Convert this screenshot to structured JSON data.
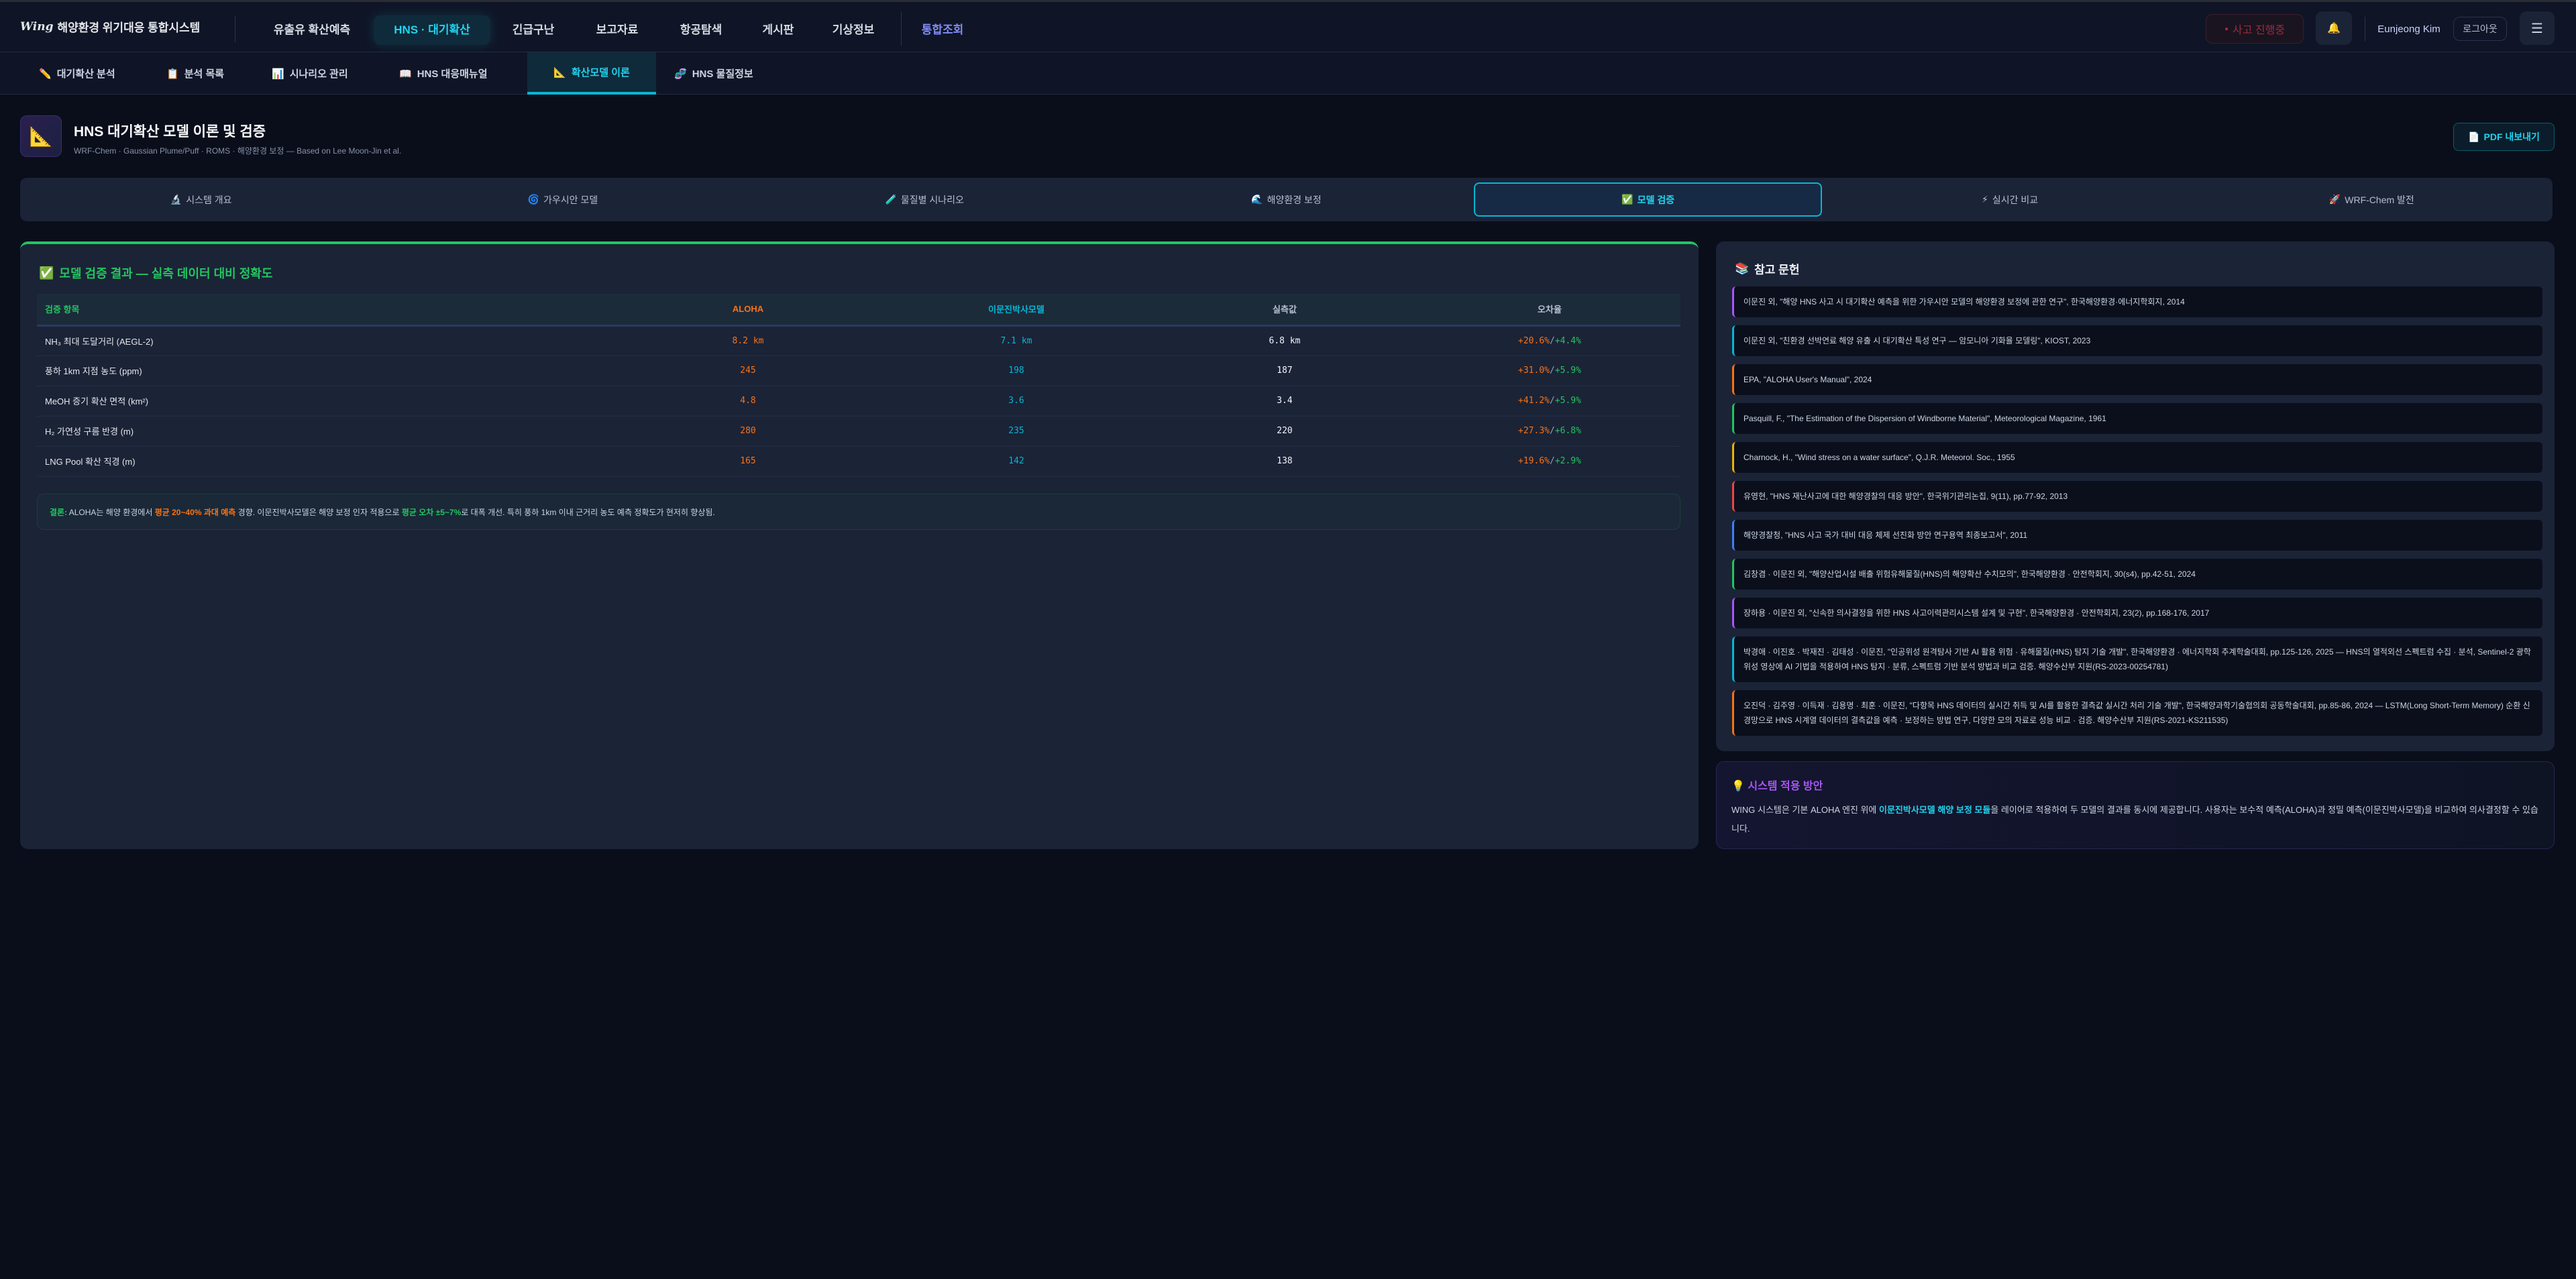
{
  "app": {
    "logo_mark": "Wing",
    "title": "해양환경 위기대응 통합시스템"
  },
  "nav": {
    "items": [
      "유출유 확산예측",
      "HNS · 대기확산",
      "긴급구난",
      "보고자료",
      "항공탐색",
      "게시판",
      "기상정보",
      "통합조회"
    ],
    "active": 1,
    "incident": "사고 진행중",
    "user": "Eunjeong Kim",
    "logout": "로그아웃"
  },
  "subnav": {
    "items": [
      {
        "icon": "✏️",
        "label": "대기확산 분석"
      },
      {
        "icon": "📋",
        "label": "분석 목록"
      },
      {
        "icon": "📊",
        "label": "시나리오 관리"
      },
      {
        "icon": "📖",
        "label": "HNS 대응매뉴얼"
      },
      {
        "icon": "📐",
        "label": "확산모델 이론"
      },
      {
        "icon": "🧬",
        "label": "HNS 물질정보"
      }
    ],
    "active": 4
  },
  "header": {
    "icon": "📐",
    "title": "HNS 대기확산 모델 이론 및 검증",
    "subtitle": "WRF-Chem · Gaussian Plume/Puff · ROMS · 해양환경 보정 — Based on Lee Moon-Jin et al.",
    "pdf": "PDF 내보내기"
  },
  "tabs": {
    "items": [
      {
        "icon": "🔬",
        "label": "시스템 개요"
      },
      {
        "icon": "🌀",
        "label": "가우시안 모델"
      },
      {
        "icon": "🧪",
        "label": "물질별 시나리오"
      },
      {
        "icon": "🌊",
        "label": "해양환경 보정"
      },
      {
        "icon": "✅",
        "label": "모델 검증"
      },
      {
        "icon": "⚡",
        "label": "실시간 비교"
      },
      {
        "icon": "🚀",
        "label": "WRF-Chem 발전"
      }
    ],
    "active": 4
  },
  "validation": {
    "title": "모델 검증 결과 — 실측 데이터 대비 정확도",
    "columns": [
      "검증 항목",
      "ALOHA",
      "이문진박사모델",
      "실측값",
      "오차율"
    ],
    "rows": [
      {
        "item": "NH₃ 최대 도달거리 (AEGL-2)",
        "aloha": "8.2 km",
        "lee": "7.1 km",
        "measured": "6.8 km",
        "err_aloha": "+20.6%",
        "err_lee": "+4.4%"
      },
      {
        "item": "풍하 1km 지점 농도 (ppm)",
        "aloha": "245",
        "lee": "198",
        "measured": "187",
        "err_aloha": "+31.0%",
        "err_lee": "+5.9%"
      },
      {
        "item": "MeOH 증기 확산 면적 (km²)",
        "aloha": "4.8",
        "lee": "3.6",
        "measured": "3.4",
        "err_aloha": "+41.2%",
        "err_lee": "+5.9%"
      },
      {
        "item": "H₂ 가연성 구름 반경 (m)",
        "aloha": "280",
        "lee": "235",
        "measured": "220",
        "err_aloha": "+27.3%",
        "err_lee": "+6.8%"
      },
      {
        "item": "LNG Pool 확산 직경 (m)",
        "aloha": "165",
        "lee": "142",
        "measured": "138",
        "err_aloha": "+19.6%",
        "err_lee": "+2.9%"
      }
    ],
    "conclusion": {
      "label": "결론:",
      "t1": " ALOHA는 해양 환경에서 ",
      "h1": "평균 20~40% 과대 예측",
      "t2": " 경향. 이문진박사모델은 해양 보정 인자 적용으로 ",
      "h2": "평균 오차 ±5~7%",
      "t3": "로 대폭 개선. 특히 풍하 1km 이내 근거리 농도 예측 정확도가 현저히 향상됨."
    }
  },
  "references": {
    "title": "참고 문헌",
    "items": [
      {
        "text": "이문진 외, \"해양 HNS 사고 시 대기확산 예측을 위한 가우시안 모델의 해양환경 보정에 관한 연구\", 한국해양환경·에너지학회지, 2014",
        "color": "#a855f7"
      },
      {
        "text": "이문진 외, \"친환경 선박연료 해양 유출 시 대기확산 특성 연구 — 암모니아 기화율 모델링\", KIOST, 2023",
        "color": "#06b6d4"
      },
      {
        "text": "EPA, \"ALOHA User's Manual\", 2024",
        "color": "#f97316"
      },
      {
        "text": "Pasquill, F., \"The Estimation of the Dispersion of Windborne Material\", Meteorological Magazine, 1961",
        "color": "#22c55e"
      },
      {
        "text": "Charnock, H., \"Wind stress on a water surface\", Q.J.R. Meteorol. Soc., 1955",
        "color": "#eab308"
      },
      {
        "text": "유영현, \"HNS 재난사고에 대한 해양경찰의 대응 방안\", 한국위기관리논집, 9(11), pp.77-92, 2013",
        "color": "#ef4444"
      },
      {
        "text": "해양경찰청, \"HNS 사고 국가 대비 대응 체제 선진화 방안 연구용역 최종보고서\", 2011",
        "color": "#3b82f6"
      },
      {
        "text": "김창겸 · 이문진 외, \"해양산업시설 배출 위험유해물질(HNS)의 해양확산 수치모의\", 한국해양환경 · 안전학회지, 30(s4), pp.42-51, 2024",
        "color": "#22c55e"
      },
      {
        "text": "장하용 · 이문진 외, \"신속한 의사결정을 위한 HNS 사고이력관리시스템 설계 및 구현\", 한국해양환경 · 안전학회지, 23(2), pp.168-176, 2017",
        "color": "#a855f7"
      },
      {
        "text": "박경애 · 이진호 · 박재진 · 김태성 · 이문진, \"인공위성 원격탐사 기반 AI 활용 위험 · 유해물질(HNS) 탐지 기술 개발\", 한국해양환경 · 에너지학회 추계학술대회, pp.125-126, 2025 — HNS의 열적외선 스펙트럼 수집 · 분석, Sentinel-2 광학위성 영상에 AI 기법을 적용하여 HNS 탐지 · 분류, 스펙트럼 기반 분석 방법과 비교 검증. 해양수산부 지원(RS-2023-00254781)",
        "color": "#06b6d4"
      },
      {
        "text": "오진덕 · 김주영 · 이득재 · 김용명 · 최훈 · 이문진, \"다항목 HNS 데이터의 실시간 취득 및 AI를 활용한 결측값 실시간 처리 기술 개발\", 한국해양과학기술협의회 공동학술대회, pp.85-86, 2024 — LSTM(Long Short-Term Memory) 순환 신경망으로 HNS 시계열 데이터의 결측값을 예측 · 보정하는 방법 연구, 다양한 모의 자료로 성능 비교 · 검증. 해양수산부 지원(RS-2021-KS211535)",
        "color": "#f97316"
      }
    ]
  },
  "system": {
    "title": "💡 시스템 적용 방안",
    "t1": "WING 시스템은 기본 ALOHA 엔진 위에 ",
    "h": "이문진박사모델 해양 보정 모듈",
    "t2": "을 레이어로 적용하여 두 모델의 결과를 동시에 제공합니다. 사용자는 보수적 예측(ALOHA)과 정밀 예측(이문진박사모델)을 비교하여 의사결정할 수 있습니다."
  }
}
